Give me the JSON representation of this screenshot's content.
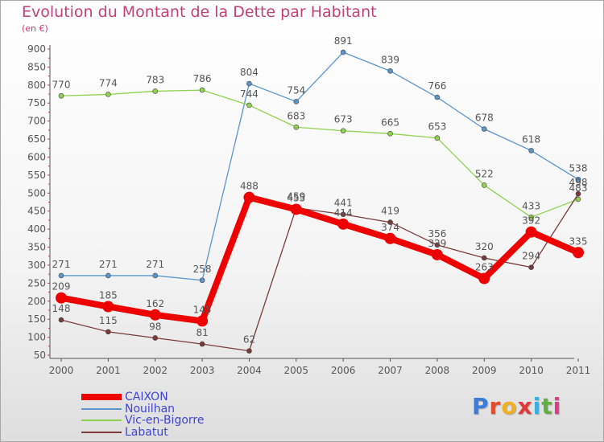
{
  "header": {
    "title": "Evolution du Montant de la Dette par Habitant",
    "subtitle": "(en €)"
  },
  "logo": {
    "text": "Proxiti",
    "letters": [
      "P",
      "r",
      "o",
      "x",
      "i",
      "t",
      "i"
    ],
    "colors": [
      "#3a7dd8",
      "#e04f2a",
      "#f0b020",
      "#e03a3a",
      "#3ab0e0",
      "#60b040",
      "#e03a8a"
    ]
  },
  "colors": {
    "axis": "#555555",
    "grid_tick": "#cc3344",
    "label": "#555555"
  },
  "chart_data": {
    "type": "line",
    "title": "Evolution du Montant de la Dette par Habitant",
    "subtitle": "(en €)",
    "xlabel": "",
    "ylabel": "",
    "x": [
      "2000",
      "2001",
      "2002",
      "2003",
      "2004",
      "2005",
      "2006",
      "2007",
      "2008",
      "2009",
      "2010",
      "2011"
    ],
    "ylim": [
      50,
      900
    ],
    "yticks": [
      50,
      100,
      150,
      200,
      250,
      300,
      350,
      400,
      450,
      500,
      550,
      600,
      650,
      700,
      750,
      800,
      850,
      900
    ],
    "grid": false,
    "legend_position": "bottom-left",
    "series": [
      {
        "name": "CAIXON",
        "color": "#ee0000",
        "thick": true,
        "values": [
          209,
          185,
          162,
          145,
          488,
          455,
          414,
          374,
          329,
          263,
          392,
          335
        ],
        "labels": [
          "209",
          "185",
          "162",
          "145",
          "488",
          "455",
          "414",
          "374",
          "329",
          "263",
          "392",
          "335"
        ]
      },
      {
        "name": "Nouilhan",
        "color": "#5b95cc",
        "thick": false,
        "values": [
          271,
          271,
          271,
          258,
          804,
          754,
          891,
          839,
          766,
          678,
          618,
          538
        ],
        "labels": [
          "271",
          "271",
          "271",
          "258",
          "804",
          "754",
          "891",
          "839",
          "766",
          "678",
          "618",
          "538"
        ]
      },
      {
        "name": "Vic-en-Bigorre",
        "color": "#8fd14f",
        "thick": false,
        "values": [
          770,
          774,
          783,
          786,
          744,
          683,
          673,
          665,
          653,
          522,
          433,
          483
        ],
        "labels": [
          "770",
          "774",
          "783",
          "786",
          "744",
          "683",
          "673",
          "665",
          "653",
          "522",
          "433",
          "483"
        ]
      },
      {
        "name": "Labatut",
        "color": "#7a3a3a",
        "thick": false,
        "values": [
          148,
          115,
          98,
          81,
          62,
          459,
          441,
          419,
          356,
          320,
          294,
          498
        ],
        "labels": [
          "148",
          "115",
          "98",
          "81",
          "62",
          "459",
          "441",
          "419",
          "356",
          "320",
          "294",
          "498"
        ]
      }
    ]
  }
}
